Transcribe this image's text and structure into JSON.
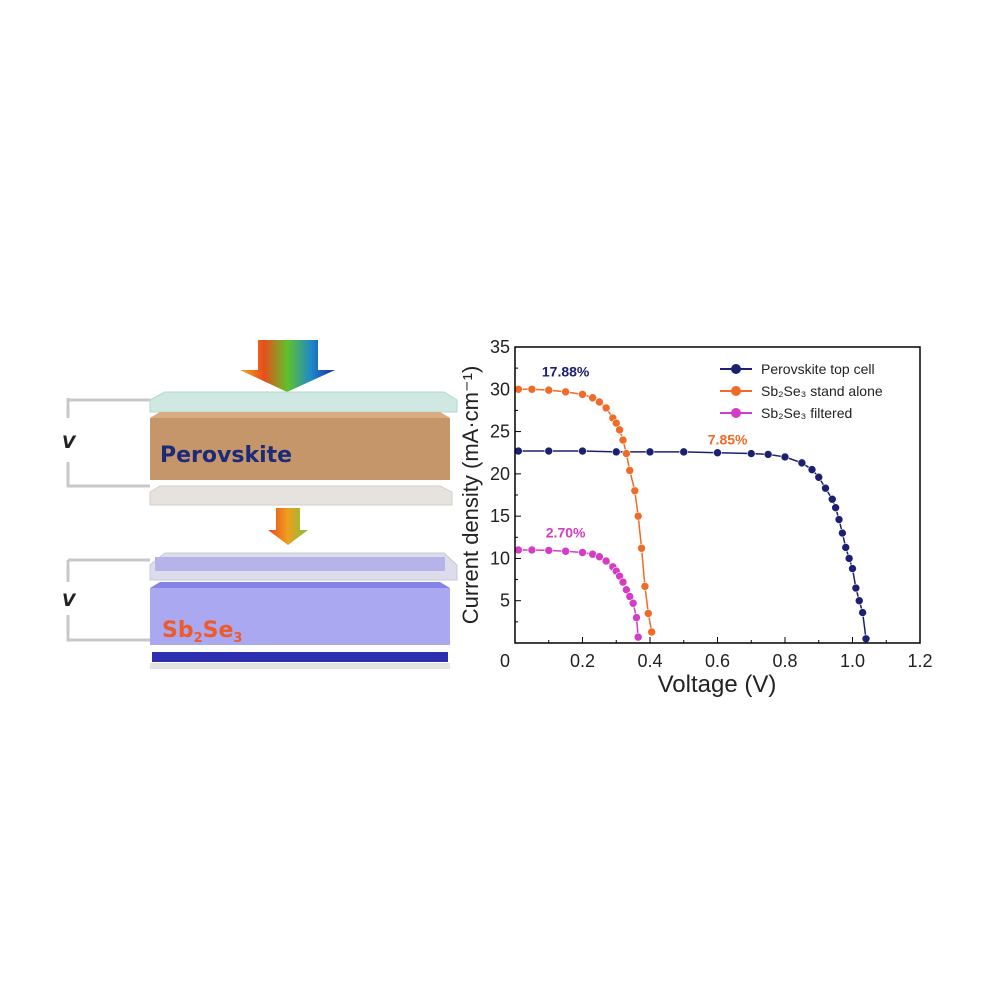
{
  "diagram": {
    "top_layer_label": "Perovskite",
    "bottom_layer_label_main": "Sb",
    "bottom_layer_label_sub1": "2",
    "bottom_layer_label_mid": "Se",
    "bottom_layer_label_sub2": "3",
    "voltage_label_top": "V",
    "voltage_label_bottom": "V",
    "colors": {
      "perovskite": "#c8976a",
      "sb2se3": "#a7a6ee",
      "glass": "#cfe7e0",
      "perovskite_text": "#1d2a7a",
      "sb2se3_text": "#ee5a2a"
    }
  },
  "chart_data": {
    "type": "line",
    "xlabel": "Voltage (V)",
    "ylabel": "Current density (mA·cm⁻¹)",
    "xlim": [
      0,
      1.2
    ],
    "ylim": [
      0,
      35
    ],
    "xticks": [
      "0",
      "0.2",
      "0.4",
      "0.6",
      "0.8",
      "1.0",
      "1.2"
    ],
    "yticks": [
      "5",
      "10",
      "15",
      "20",
      "25",
      "30",
      "35"
    ],
    "legend_placement": "top-right",
    "legend": [
      "Perovskite top cell",
      "Sb₂Se₃ stand alone",
      "Sb₂Se₃ filtered"
    ],
    "series": [
      {
        "name": "Perovskite top cell",
        "color": "#1b2070",
        "annotation": "17.88%",
        "x": [
          0.01,
          0.1,
          0.2,
          0.3,
          0.4,
          0.5,
          0.6,
          0.7,
          0.75,
          0.8,
          0.85,
          0.88,
          0.9,
          0.92,
          0.94,
          0.95,
          0.96,
          0.97,
          0.98,
          0.99,
          1.0,
          1.01,
          1.02,
          1.03,
          1.04
        ],
        "y": [
          22.7,
          22.7,
          22.7,
          22.6,
          22.6,
          22.6,
          22.5,
          22.4,
          22.3,
          22.0,
          21.3,
          20.5,
          19.6,
          18.3,
          17.0,
          16.0,
          14.6,
          13.0,
          11.3,
          10.0,
          8.8,
          6.5,
          5.0,
          3.6,
          0.5
        ]
      },
      {
        "name": "Sb₂Se₃ stand alone",
        "color": "#f06a28",
        "annotation": "7.85%",
        "x": [
          0.01,
          0.05,
          0.1,
          0.15,
          0.2,
          0.23,
          0.25,
          0.27,
          0.29,
          0.3,
          0.31,
          0.32,
          0.33,
          0.34,
          0.355,
          0.365,
          0.375,
          0.385,
          0.395,
          0.405
        ],
        "y": [
          30.0,
          30.0,
          29.9,
          29.7,
          29.4,
          29.0,
          28.5,
          27.8,
          26.6,
          26.0,
          25.2,
          24.0,
          22.4,
          20.4,
          18.0,
          15.0,
          11.2,
          6.7,
          3.5,
          1.3
        ]
      },
      {
        "name": "Sb₂Se₃ filtered",
        "color": "#d43cc6",
        "annotation": "2.70%",
        "x": [
          0.01,
          0.05,
          0.1,
          0.15,
          0.2,
          0.23,
          0.25,
          0.27,
          0.29,
          0.3,
          0.31,
          0.32,
          0.33,
          0.34,
          0.35,
          0.36,
          0.365
        ],
        "y": [
          11.0,
          11.0,
          10.95,
          10.85,
          10.7,
          10.5,
          10.2,
          9.7,
          9.0,
          8.5,
          7.9,
          7.2,
          6.3,
          5.5,
          4.7,
          3.0,
          0.7
        ]
      }
    ]
  }
}
